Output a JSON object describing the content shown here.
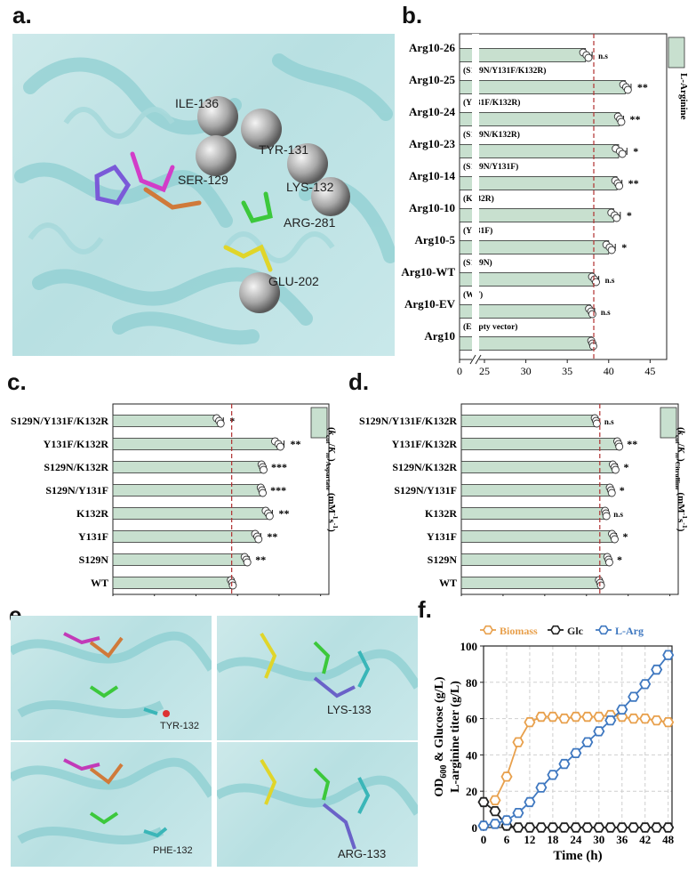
{
  "panel_letters": {
    "a": "a.",
    "b": "b.",
    "c": "c.",
    "d": "d.",
    "e": "e.",
    "f": "f."
  },
  "structure_a": {
    "residues": [
      "ILE-136",
      "TYR-131",
      "SER-129",
      "LYS-132",
      "ARG-281",
      "GLU-202"
    ]
  },
  "structure_e": {
    "labels": [
      "TYR-132",
      "LYS-133",
      "PHE-132",
      "ARG-133"
    ]
  },
  "colors": {
    "bar_fill": "#c8e0cf",
    "bar_edge": "#333333",
    "ref_line": "#b03030",
    "biomass": "#e8a04c",
    "glc": "#222222",
    "larg": "#3f78c0",
    "protein": "#b8e0e2"
  },
  "chart_data": [
    {
      "id": "b",
      "type": "bar",
      "orientation": "horizontal",
      "categories": [
        "Arg10-26",
        "Arg10-25",
        "Arg10-24",
        "Arg10-23",
        "Arg10-14",
        "Arg10-10",
        "Arg10-5",
        "Arg10-WT",
        "Arg10-EV",
        "Arg10"
      ],
      "sublabels": [
        "(S129N/Y131F/K132R)",
        "(Y131F/K132R)",
        "(S129N/K132R)",
        "(S129N/Y131F)",
        "(K132R)",
        "(Y131F)",
        "(S129N)",
        "(WT)",
        "(Empty vector)",
        ""
      ],
      "values": [
        37.2,
        42.0,
        41.3,
        41.2,
        41.0,
        40.6,
        40.0,
        38.2,
        37.8,
        38.0
      ],
      "errors": [
        0.8,
        0.7,
        0.5,
        1.0,
        0.6,
        0.8,
        0.8,
        0.6,
        0.5,
        0.3
      ],
      "significance": [
        "n.s",
        "**",
        "**",
        "*",
        "**",
        "*",
        "*",
        "n.s",
        "n.s",
        ""
      ],
      "ref_value": 38.2,
      "xlabel": "L-Arginine (g/L)",
      "xticks": [
        "0",
        "25",
        "30",
        "35",
        "40",
        "45"
      ],
      "xaxis_break": [
        0,
        25
      ],
      "xlim": [
        25,
        47
      ],
      "legend": "L-Arginine",
      "legend_position": "top-right"
    },
    {
      "id": "c",
      "type": "bar",
      "orientation": "horizontal",
      "categories": [
        "S129N/Y131F/K132R",
        "Y131F/K132R",
        "S129N/K132R",
        "S129N/Y131F",
        "K132R",
        "Y131F",
        "S129N",
        "WT"
      ],
      "values": [
        12.7,
        19.8,
        18.0,
        17.9,
        18.6,
        17.3,
        16.0,
        14.3
      ],
      "errors": [
        0.6,
        0.8,
        0.3,
        0.3,
        0.6,
        0.5,
        0.4,
        0.3
      ],
      "significance": [
        "*",
        "**",
        "***",
        "***",
        "**",
        "**",
        "**",
        ""
      ],
      "ref_value": 14.3,
      "xlabel": "(kcat/Km)Aspartate (mM⁻¹s⁻¹)",
      "xticks": [
        "0",
        "5",
        "10",
        "15",
        "20",
        "25"
      ],
      "xlim": [
        0,
        26
      ],
      "legend": "(kcat/Km)Aspartate",
      "legend_position": "top-right"
    },
    {
      "id": "d",
      "type": "bar",
      "orientation": "horizontal",
      "categories": [
        "S129N/Y131F/K132R",
        "Y131F/K132R",
        "S129N/K132R",
        "S129N/Y131F",
        "K132R",
        "Y131F",
        "S129N",
        "WT"
      ],
      "values": [
        16.1,
        18.8,
        18.3,
        17.9,
        17.3,
        18.2,
        17.6,
        16.6
      ],
      "errors": [
        0.3,
        0.3,
        0.4,
        0.3,
        0.2,
        0.4,
        0.3,
        0.3
      ],
      "significance": [
        "n.s",
        "**",
        "*",
        "*",
        "n.s",
        "*",
        "*",
        ""
      ],
      "ref_value": 16.6,
      "xlabel": "(kcat/Km)Citrulline (mM⁻¹s⁻¹)",
      "xticks": [
        "0",
        "5",
        "10",
        "15",
        "20",
        "25"
      ],
      "xlim": [
        0,
        26
      ],
      "legend": "(kcat/Km)Citrulline",
      "legend_position": "top-right"
    },
    {
      "id": "f",
      "type": "line",
      "x": [
        0,
        3,
        6,
        9,
        12,
        15,
        18,
        21,
        24,
        27,
        30,
        33,
        36,
        39,
        42,
        45,
        48
      ],
      "series": [
        {
          "name": "Biomass",
          "values": [
            null,
            15,
            28,
            47,
            58,
            61,
            61,
            60,
            61,
            61,
            61,
            62,
            61,
            60,
            60,
            59,
            58
          ]
        },
        {
          "name": "Glc",
          "values": [
            14,
            9,
            1,
            0,
            0,
            0,
            0,
            0,
            0,
            0,
            0,
            0,
            0,
            0,
            0,
            0,
            0
          ]
        },
        {
          "name": "L-Arg",
          "values": [
            1,
            2,
            4,
            8,
            14,
            22,
            29,
            35,
            41,
            47,
            53,
            59,
            65,
            72,
            79,
            87,
            95
          ]
        }
      ],
      "xlabel": "Time (h)",
      "ylabel": "OD600 & Glucose (g/L) L-arginine titer (g/L)",
      "xticks": [
        0,
        6,
        12,
        18,
        24,
        30,
        36,
        42,
        48
      ],
      "yticks": [
        0,
        20,
        40,
        60,
        80,
        100
      ],
      "xlim": [
        0,
        49
      ],
      "ylim": [
        0,
        100
      ],
      "grid": true,
      "legend_position": "top"
    }
  ]
}
